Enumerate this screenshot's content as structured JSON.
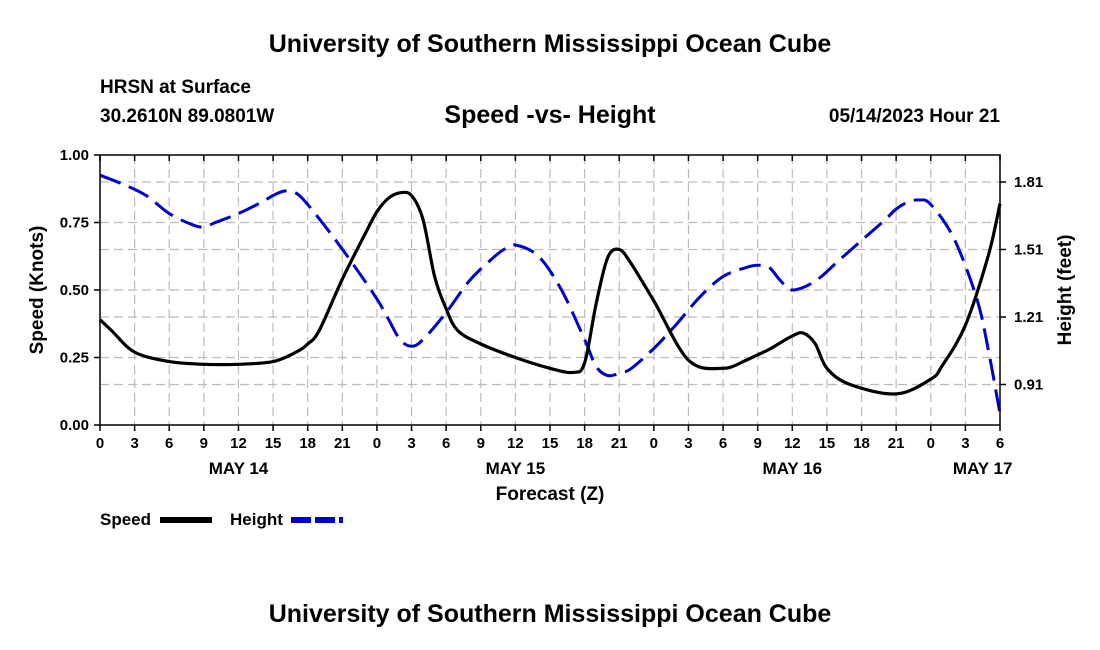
{
  "page": {
    "title": "University of Southern Mississippi Ocean Cube",
    "station": "HRSN at Surface",
    "coordinates": "30.2610N  89.0801W",
    "subtitle": "Speed -vs- Height",
    "datetime": "05/14/2023 Hour 21",
    "footer_title": "University of Southern Mississippi Ocean Cube"
  },
  "colors": {
    "speed": "#000000",
    "height": "#0000cc",
    "grid": "#bbbbbb"
  },
  "chart_data": {
    "type": "line",
    "title": "Speed -vs- Height",
    "xlabel": "Forecast (Z)",
    "ylabel_left": "Speed (Knots)",
    "ylabel_right": "Height (feet)",
    "x_unit": "hours since May 14 00Z",
    "xlim": [
      0,
      78
    ],
    "ylim_left": [
      0,
      1
    ],
    "ylim_right": [
      0.73,
      1.93
    ],
    "x_ticks": [
      0,
      3,
      6,
      9,
      12,
      15,
      18,
      21,
      24,
      27,
      30,
      33,
      36,
      39,
      42,
      45,
      48,
      51,
      54,
      57,
      60,
      63,
      66,
      69,
      72,
      75,
      78
    ],
    "x_tick_labels": [
      "0",
      "3",
      "6",
      "9",
      "12",
      "15",
      "18",
      "21",
      "0",
      "3",
      "6",
      "9",
      "12",
      "15",
      "18",
      "21",
      "0",
      "3",
      "6",
      "9",
      "12",
      "15",
      "18",
      "21",
      "0",
      "3",
      "6"
    ],
    "date_labels": [
      {
        "x": 12,
        "text": "MAY 14"
      },
      {
        "x": 36,
        "text": "MAY 15"
      },
      {
        "x": 60,
        "text": "MAY 16"
      },
      {
        "x": 76.5,
        "text": "MAY 17"
      }
    ],
    "y_left_ticks": [
      0,
      0.25,
      0.5,
      0.75,
      1
    ],
    "y_left_tick_labels": [
      "0.00",
      "0.25",
      "0.50",
      "0.75",
      "1.00"
    ],
    "y_right_ticks": [
      0.91,
      1.21,
      1.51,
      1.81
    ],
    "y_right_tick_labels": [
      "0.91",
      "1.21",
      "1.51",
      "1.81"
    ],
    "grid": true,
    "legend": {
      "position": "bottom-left"
    },
    "series": [
      {
        "name": "Speed",
        "axis": "left",
        "style": "solid",
        "x": [
          0,
          1,
          3,
          6,
          9,
          12,
          15,
          17,
          18,
          19,
          21,
          23,
          24,
          25,
          26,
          27,
          28,
          29,
          30,
          31,
          33,
          36,
          39,
          41,
          42,
          43,
          44,
          45,
          46,
          48,
          51,
          54,
          56,
          57,
          58,
          60,
          61,
          62,
          63,
          65,
          69,
          72,
          73,
          75,
          77,
          78
        ],
        "values": [
          0.39,
          0.35,
          0.27,
          0.235,
          0.225,
          0.225,
          0.235,
          0.27,
          0.3,
          0.35,
          0.54,
          0.71,
          0.79,
          0.84,
          0.86,
          0.85,
          0.76,
          0.55,
          0.43,
          0.35,
          0.3,
          0.25,
          0.21,
          0.195,
          0.23,
          0.45,
          0.62,
          0.65,
          0.6,
          0.46,
          0.24,
          0.21,
          0.24,
          0.26,
          0.28,
          0.33,
          0.34,
          0.3,
          0.21,
          0.15,
          0.115,
          0.17,
          0.22,
          0.37,
          0.63,
          0.82
        ]
      },
      {
        "name": "Height",
        "axis": "right",
        "style": "dashed",
        "x": [
          0,
          2,
          4,
          6,
          8,
          9,
          10,
          12,
          14,
          15,
          16,
          17,
          18,
          20,
          22,
          24,
          25,
          26,
          27,
          28,
          30,
          32,
          34,
          35,
          36,
          38,
          40,
          42,
          43,
          44,
          45,
          46,
          48,
          50,
          52,
          54,
          56,
          57,
          58,
          59,
          60,
          62,
          64,
          66,
          68,
          69,
          70,
          71,
          72,
          74,
          76,
          77,
          78
        ],
        "values": [
          1.84,
          1.8,
          1.75,
          1.67,
          1.62,
          1.61,
          1.63,
          1.67,
          1.72,
          1.75,
          1.77,
          1.76,
          1.71,
          1.58,
          1.44,
          1.29,
          1.2,
          1.11,
          1.08,
          1.11,
          1.23,
          1.37,
          1.47,
          1.51,
          1.53,
          1.48,
          1.33,
          1.11,
          0.99,
          0.95,
          0.96,
          0.98,
          1.07,
          1.18,
          1.3,
          1.39,
          1.43,
          1.44,
          1.43,
          1.37,
          1.33,
          1.37,
          1.46,
          1.55,
          1.64,
          1.69,
          1.72,
          1.73,
          1.71,
          1.56,
          1.29,
          1.06,
          0.78
        ]
      }
    ]
  }
}
